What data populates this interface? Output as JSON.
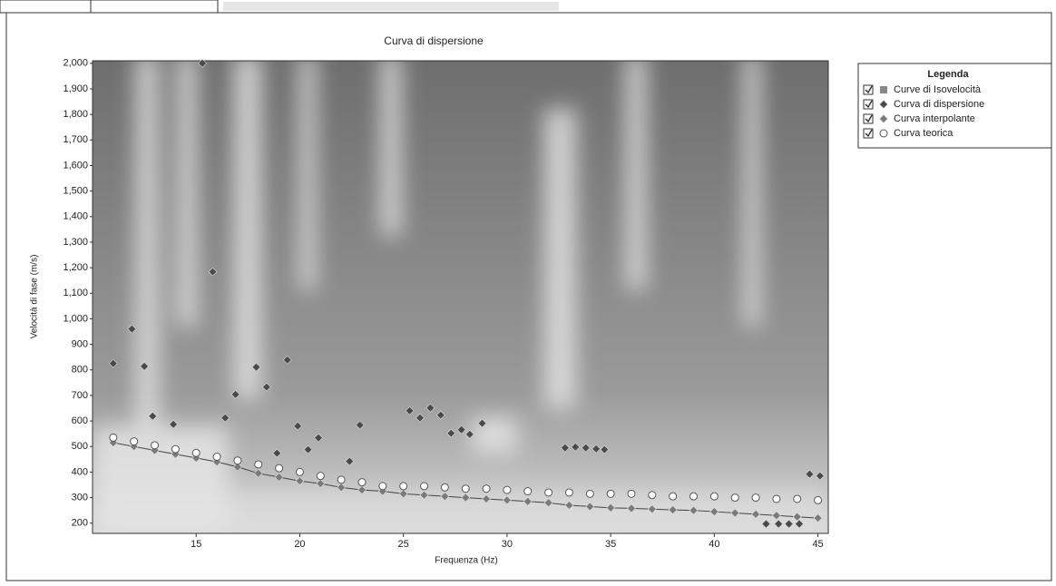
{
  "chart_data": {
    "type": "scatter",
    "title": "Curva di dispersione",
    "x_label": "Frequenza (Hz)",
    "y_label": "Velocità di fase (m/s)",
    "xlim": [
      10,
      45.5
    ],
    "ylim": [
      160,
      2010
    ],
    "xticks": [
      15,
      20,
      25,
      30,
      35,
      40,
      45
    ],
    "yticks": [
      200,
      300,
      400,
      500,
      600,
      700,
      800,
      900,
      {
        "value": 1000,
        "label": "1,000"
      },
      {
        "value": 1100,
        "label": "1,100"
      },
      {
        "value": 1200,
        "label": "1,200"
      },
      {
        "value": 1300,
        "label": "1,300"
      },
      {
        "value": 1400,
        "label": "1,400"
      },
      {
        "value": 1500,
        "label": "1,500"
      },
      {
        "value": 1600,
        "label": "1,600"
      },
      {
        "value": 1700,
        "label": "1,700"
      },
      {
        "value": 1800,
        "label": "1,800"
      },
      {
        "value": 1900,
        "label": "1,900"
      },
      {
        "value": {
          "v": 2000
        },
        "label": "2,000"
      }
    ],
    "legend_title": "Legenda",
    "background_name": "Curve di Isovelocità",
    "series": [
      {
        "name": "Curva di dispersione",
        "color": "#4a4a4a",
        "marker": "diamond",
        "line": false,
        "x": [
          11.0,
          11.9,
          12.5,
          12.9,
          13.9,
          15.3,
          15.8,
          16.4,
          16.9,
          17.9,
          18.4,
          18.9,
          19.4,
          19.9,
          20.4,
          20.9,
          22.4,
          22.9,
          25.3,
          25.8,
          26.3,
          26.8,
          27.3,
          27.8,
          28.2,
          28.8,
          32.8,
          33.3,
          33.8,
          34.3,
          34.7,
          42.5,
          43.1,
          43.6,
          44.1,
          44.6,
          45.1
        ],
        "values": [
          825,
          960,
          814,
          619,
          587,
          2000,
          1184,
          612,
          704,
          811,
          733,
          474,
          839,
          580,
          488,
          534,
          442,
          584,
          640,
          612,
          651,
          623,
          552,
          566,
          548,
          591,
          495,
          498,
          495,
          491,
          488,
          197,
          197,
          197,
          197,
          392,
          385
        ]
      },
      {
        "name": "Curva interpolante",
        "color": "#7a7a7a",
        "marker": "diamond",
        "line": true,
        "x": [
          11,
          12,
          13,
          14,
          15,
          16,
          17,
          18,
          19,
          20,
          21,
          22,
          23,
          24,
          25,
          26,
          27,
          28,
          29,
          30,
          31,
          32,
          33,
          34,
          35,
          36,
          37,
          38,
          39,
          40,
          41,
          42,
          43,
          44,
          45
        ],
        "values": [
          515,
          500,
          485,
          470,
          455,
          440,
          420,
          395,
          380,
          365,
          355,
          340,
          330,
          325,
          315,
          310,
          305,
          300,
          295,
          290,
          285,
          280,
          270,
          265,
          260,
          258,
          255,
          252,
          250,
          245,
          240,
          235,
          230,
          225,
          220
        ]
      },
      {
        "name": "Curva teorica",
        "color": "#ffffff",
        "marker": "circle",
        "line": false,
        "x": [
          11,
          12,
          13,
          14,
          15,
          16,
          17,
          18,
          19,
          20,
          21,
          22,
          23,
          24,
          25,
          26,
          27,
          28,
          29,
          30,
          31,
          32,
          33,
          34,
          35,
          36,
          37,
          38,
          39,
          40,
          41,
          42,
          43,
          44,
          45
        ],
        "values": [
          535,
          520,
          505,
          490,
          475,
          460,
          445,
          430,
          415,
          400,
          385,
          370,
          360,
          345,
          345,
          345,
          340,
          335,
          335,
          330,
          325,
          320,
          320,
          315,
          315,
          315,
          310,
          305,
          305,
          305,
          300,
          300,
          295,
          295,
          290
        ]
      }
    ]
  }
}
